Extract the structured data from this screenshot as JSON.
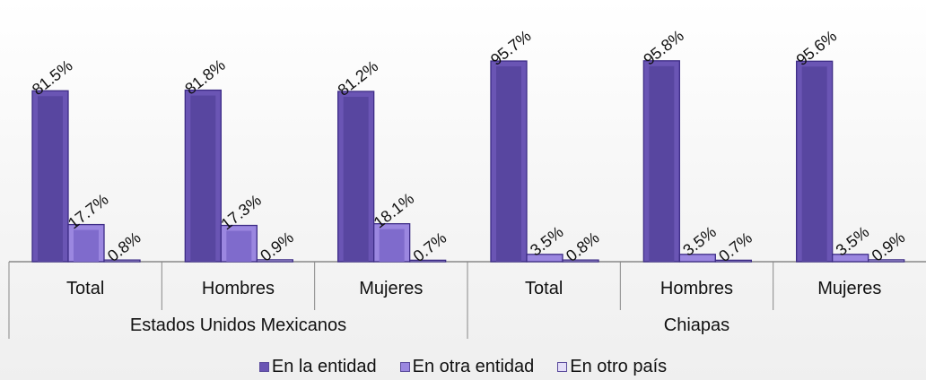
{
  "chart_data": {
    "type": "bar",
    "groups": [
      {
        "name": "Estados Unidos Mexicanos",
        "categories": [
          "Total",
          "Hombres",
          "Mujeres"
        ]
      },
      {
        "name": "Chiapas",
        "categories": [
          "Total",
          "Hombres",
          "Mujeres"
        ]
      }
    ],
    "series": [
      {
        "name": "En la entidad",
        "values": [
          81.5,
          81.8,
          81.2,
          95.7,
          95.8,
          95.6
        ],
        "labels": [
          "81.5%",
          "81.8%",
          "81.2%",
          "95.7%",
          "95.8%",
          "95.6%"
        ]
      },
      {
        "name": "En otra entidad",
        "values": [
          17.7,
          17.3,
          18.1,
          3.5,
          3.5,
          3.5
        ],
        "labels": [
          "17.7%",
          "17.3%",
          "18.1%",
          "3.5%",
          "3.5%",
          "3.5%"
        ]
      },
      {
        "name": "En otro país",
        "values": [
          0.8,
          0.9,
          0.7,
          0.8,
          0.7,
          0.9
        ],
        "labels": [
          "0.8%",
          "0.9%",
          "0.7%",
          "0.8%",
          "0.7%",
          "0.9%"
        ]
      }
    ],
    "ylim": [
      0,
      100
    ],
    "colors": {
      "en_la_entidad": "#6a55b4",
      "en_otra_entidad": "#9b87e0",
      "en_otro_pais": "#c9bff0",
      "edge": "#3d2c86"
    },
    "legend_position": "bottom",
    "grid": false
  }
}
